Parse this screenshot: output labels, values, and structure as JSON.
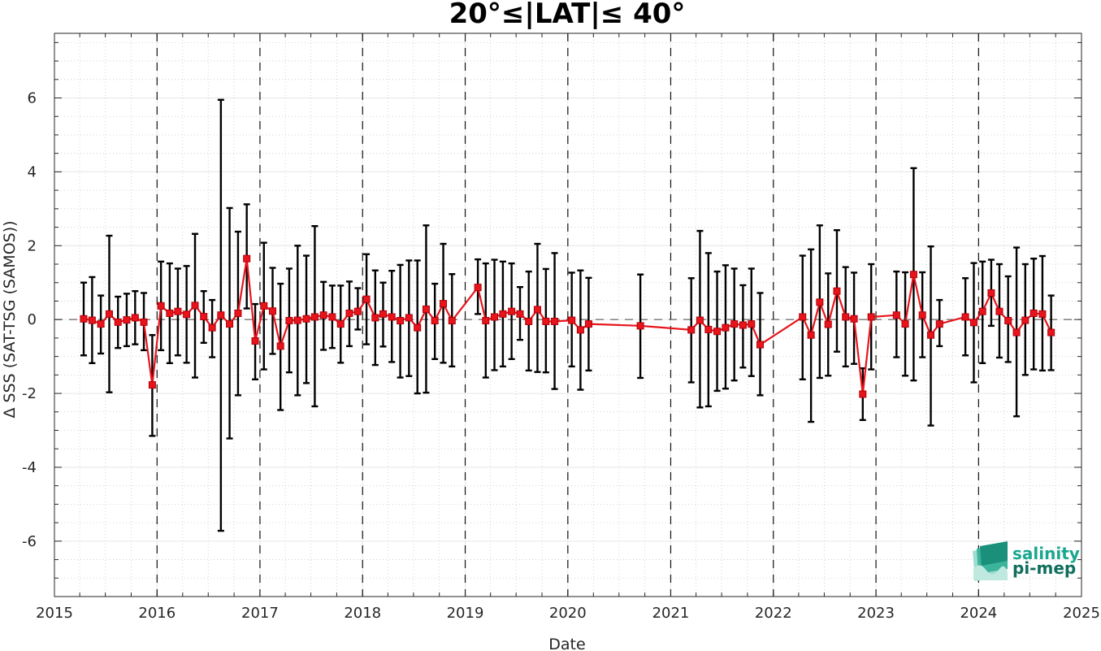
{
  "chart_data": {
    "type": "line",
    "title": "20°≤|LAT|≤ 40°",
    "xlabel": "Date",
    "ylabel": "Δ SSS (SAT-TSG (SAMOS))",
    "xlim": [
      "2015-01-01",
      "2025-01-01"
    ],
    "ylim": [
      -7.5,
      7.75
    ],
    "x_ticks": [
      "2015",
      "2016",
      "2017",
      "2018",
      "2019",
      "2020",
      "2021",
      "2022",
      "2023",
      "2024",
      "2025"
    ],
    "y_ticks": [
      -6,
      -4,
      -2,
      0,
      2,
      4,
      6
    ],
    "grid": true,
    "year_separators": [
      "2016",
      "2017",
      "2018",
      "2019",
      "2020",
      "2021",
      "2022",
      "2023",
      "2024"
    ],
    "zero_line": 0,
    "colors": {
      "series": "#e8141c",
      "errorbar": "#000000",
      "logo": "#1aa68e"
    },
    "series": [
      {
        "x": [
          "2015-04-15",
          "2015-05-15",
          "2015-06-15",
          "2015-07-15",
          "2015-08-15",
          "2015-09-15",
          "2015-10-15",
          "2015-11-15",
          "2015-12-15",
          "2016-01-15",
          "2016-02-15",
          "2016-03-15",
          "2016-04-15",
          "2016-05-15",
          "2016-06-15",
          "2016-07-15",
          "2016-08-15",
          "2016-09-15",
          "2016-10-15",
          "2016-11-15",
          "2016-12-15",
          "2017-01-15",
          "2017-02-15",
          "2017-03-15",
          "2017-04-15",
          "2017-05-15",
          "2017-06-15",
          "2017-07-15",
          "2017-08-15",
          "2017-09-15",
          "2017-10-15",
          "2017-11-15",
          "2017-12-15",
          "2018-01-15",
          "2018-02-15",
          "2018-03-15",
          "2018-04-15",
          "2018-05-15",
          "2018-06-15",
          "2018-07-15",
          "2018-08-15",
          "2018-09-15",
          "2018-10-15",
          "2018-11-15",
          "2019-02-15",
          "2019-03-15",
          "2019-04-15",
          "2019-05-15",
          "2019-06-15",
          "2019-07-15",
          "2019-08-15",
          "2019-09-15",
          "2019-10-15",
          "2019-11-15",
          "2020-01-15",
          "2020-02-15",
          "2020-03-15",
          "2020-09-15",
          "2021-03-15",
          "2021-04-15",
          "2021-05-15",
          "2021-06-15",
          "2021-07-15",
          "2021-08-15",
          "2021-09-15",
          "2021-10-15",
          "2021-11-15",
          "2022-04-15",
          "2022-05-15",
          "2022-06-15",
          "2022-07-15",
          "2022-08-15",
          "2022-09-15",
          "2022-10-15",
          "2022-11-15",
          "2022-12-15",
          "2023-03-15",
          "2023-04-15",
          "2023-05-15",
          "2023-06-15",
          "2023-07-15",
          "2023-08-15",
          "2023-11-15",
          "2023-12-15",
          "2024-01-15",
          "2024-02-15",
          "2024-03-15",
          "2024-04-15",
          "2024-05-15",
          "2024-06-15",
          "2024-07-15",
          "2024-08-15",
          "2024-09-15"
        ],
        "y": [
          0.02,
          -0.02,
          -0.12,
          0.15,
          -0.07,
          -0.01,
          0.05,
          -0.07,
          -1.77,
          0.37,
          0.17,
          0.22,
          0.14,
          0.38,
          0.08,
          -0.22,
          0.12,
          -0.12,
          0.17,
          1.65,
          -0.58,
          0.37,
          0.23,
          -0.72,
          -0.03,
          -0.02,
          0.02,
          0.07,
          0.12,
          0.07,
          -0.12,
          0.17,
          0.22,
          0.55,
          0.05,
          0.15,
          0.07,
          -0.03,
          0.05,
          -0.22,
          0.28,
          -0.03,
          0.43,
          -0.03,
          0.87,
          -0.03,
          0.07,
          0.15,
          0.22,
          0.15,
          -0.05,
          0.27,
          -0.05,
          -0.05,
          -0.02,
          -0.28,
          -0.12,
          -0.17,
          -0.28,
          -0.02,
          -0.27,
          -0.32,
          -0.22,
          -0.12,
          -0.15,
          -0.12,
          -0.68,
          0.07,
          -0.42,
          0.47,
          -0.13,
          0.77,
          0.07,
          0.02,
          -2.02,
          0.07,
          0.12,
          -0.12,
          1.22,
          0.12,
          -0.42,
          -0.12,
          0.07,
          -0.08,
          0.22,
          0.72,
          0.22,
          -0.03,
          -0.35,
          -0.02,
          0.17,
          0.15,
          -0.35
        ],
        "lower": [
          -0.97,
          -1.18,
          -0.92,
          -1.97,
          -0.77,
          -0.72,
          -0.67,
          -0.83,
          -3.15,
          -0.83,
          -1.18,
          -0.97,
          -1.17,
          -1.57,
          -0.63,
          -1.02,
          -5.72,
          -3.22,
          -2.05,
          0.3,
          -1.62,
          -1.35,
          -0.93,
          -2.45,
          -1.43,
          -2.05,
          -1.72,
          -2.35,
          -0.82,
          -0.77,
          -1.17,
          -0.72,
          -0.27,
          -0.67,
          -1.23,
          -0.73,
          -1.15,
          -1.57,
          -1.53,
          -2.0,
          -1.98,
          -1.07,
          -1.17,
          -1.27,
          0.15,
          -1.57,
          -1.37,
          -1.27,
          -1.07,
          -0.55,
          -1.38,
          -1.42,
          -1.43,
          -1.88,
          -1.27,
          -1.9,
          -1.38,
          -1.58,
          -1.7,
          -2.38,
          -2.35,
          -1.93,
          -1.87,
          -1.65,
          -1.3,
          -1.53,
          -2.05,
          -1.62,
          -2.77,
          -1.58,
          -1.52,
          -0.87,
          -1.27,
          -1.2,
          -2.72,
          -1.35,
          -1.02,
          -1.52,
          -1.65,
          -1.02,
          -2.87,
          -0.72,
          -0.97,
          -1.7,
          -1.18,
          -0.17,
          -1.03,
          -1.15,
          -2.62,
          -1.5,
          -1.35,
          -1.38,
          -1.37
        ],
        "upper": [
          1.0,
          1.15,
          0.65,
          2.27,
          0.62,
          0.7,
          0.77,
          0.72,
          -0.42,
          1.57,
          1.52,
          1.38,
          1.45,
          2.32,
          0.77,
          0.53,
          5.95,
          3.02,
          2.38,
          3.12,
          0.42,
          2.08,
          1.4,
          0.97,
          1.38,
          2.0,
          1.73,
          2.53,
          1.02,
          0.92,
          0.92,
          1.03,
          0.85,
          1.77,
          1.33,
          1.0,
          1.32,
          1.48,
          1.6,
          1.6,
          2.55,
          0.97,
          2.05,
          1.23,
          1.63,
          1.52,
          1.62,
          1.57,
          1.52,
          0.88,
          1.3,
          2.05,
          1.37,
          1.8,
          1.27,
          1.33,
          1.13,
          1.22,
          1.12,
          2.4,
          1.8,
          1.3,
          1.47,
          1.38,
          0.93,
          1.38,
          0.72,
          1.73,
          1.9,
          2.55,
          1.25,
          2.42,
          1.42,
          1.27,
          -1.32,
          1.5,
          1.3,
          1.28,
          4.1,
          1.28,
          1.98,
          0.53,
          1.12,
          1.53,
          1.57,
          1.62,
          1.5,
          1.17,
          1.95,
          1.5,
          1.65,
          1.72,
          0.65
        ]
      }
    ]
  },
  "logo": {
    "line1": "salinity",
    "line2": "pi-mep"
  }
}
